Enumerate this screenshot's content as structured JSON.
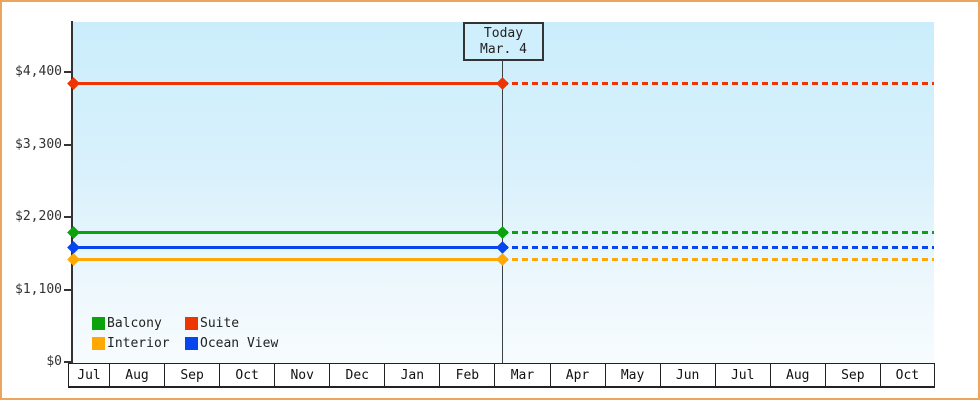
{
  "colors": {
    "frame_border": "#eaa55e",
    "plot_background_top": "#cbedfb",
    "plot_background_bottom": "#f7fcfe",
    "axis": "#333333",
    "suite": "#ee3400",
    "balcony": "#0aa30b",
    "ocean_view": "#0546ef",
    "interior": "#ffa801"
  },
  "chart_data": {
    "type": "line",
    "title": "",
    "xlabel": "",
    "ylabel": "",
    "grid": false,
    "x_axis": {
      "tick_labels": [
        "Jul",
        "Aug",
        "Sep",
        "Oct",
        "Nov",
        "Dec",
        "Jan",
        "Feb",
        "Mar",
        "Apr",
        "May",
        "Jun",
        "Jul",
        "Aug",
        "Sep",
        "Oct"
      ]
    },
    "y_axis": {
      "tick_labels": [
        "$0",
        "$1,100",
        "$2,200",
        "$3,300",
        "$4,400"
      ],
      "tick_values": [
        0,
        1100,
        2200,
        3300,
        4400
      ],
      "range": [
        0,
        4400
      ]
    },
    "today_marker": {
      "line1": "Today",
      "line2": "Mar. 4",
      "position_note": "vertical line at Feb/Mar boundary; lines solid before today, dashed projection after"
    },
    "series": [
      {
        "name": "Suite",
        "color": "#ee3400",
        "value": 4230,
        "style": "flat line, solid then dashed, diamond markers at start and today"
      },
      {
        "name": "Balcony",
        "color": "#0aa30b",
        "value": 1970,
        "style": "flat line, solid then dashed, diamond markers at start and today"
      },
      {
        "name": "Ocean View",
        "color": "#0546ef",
        "value": 1730,
        "style": "flat line, solid then dashed, diamond markers at start and today"
      },
      {
        "name": "Interior",
        "color": "#ffa801",
        "value": 1560,
        "style": "flat line, solid then dashed, diamond markers at start and today"
      }
    ],
    "legend": {
      "position": "bottom-left inside plot",
      "entries": [
        {
          "label": "Balcony",
          "color": "#0aa30b"
        },
        {
          "label": "Suite",
          "color": "#ee3400"
        },
        {
          "label": "Interior",
          "color": "#ffa801"
        },
        {
          "label": "Ocean View",
          "color": "#0546ef"
        }
      ]
    }
  }
}
